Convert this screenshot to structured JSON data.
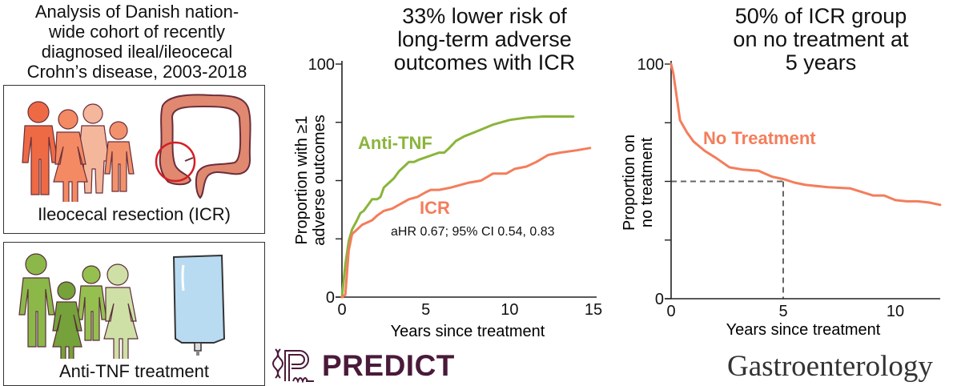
{
  "left_panel": {
    "title_lines": [
      "Analysis of Danish nation-",
      "wide cohort of recently",
      "diagnosed ileal/ileocecal",
      "Crohn’s disease, 2003-2018"
    ],
    "groups": [
      {
        "label": "Ileocecal resection (ICR)",
        "people_icon": "family-icon",
        "organ_icon": "colon-icon",
        "color": "#f07c5a"
      },
      {
        "label": "Anti-TNF treatment",
        "people_icon": "family-icon",
        "organ_icon": "iv-bag-icon",
        "color": "#8cb84a"
      }
    ]
  },
  "logos": {
    "predict": "PREDICT",
    "journal": "Gastroenterology"
  },
  "chart_data": [
    {
      "type": "line",
      "title": "33% lower risk of long-term adverse outcomes with ICR",
      "title_lines": [
        "33% lower risk of",
        "long-term adverse",
        "outcomes with ICR"
      ],
      "xlabel": "Years since treatment",
      "ylabel_lines": [
        "Proportion with ≥1",
        "adverse outcomes"
      ],
      "xlim": [
        0,
        15
      ],
      "ylim": [
        0,
        100
      ],
      "xticks": [
        0,
        5,
        10,
        15
      ],
      "yticks": [
        0,
        25,
        50,
        75,
        100
      ],
      "yticklabels": [
        "0",
        "",
        "",
        "",
        "100"
      ],
      "grid": false,
      "annotation": "aHR 0.67; 95% CI 0.54, 0.83",
      "series": [
        {
          "name": "Anti-TNF",
          "color": "#8ab53a",
          "x": [
            0,
            0.2,
            0.4,
            0.6,
            0.9,
            1.1,
            1.3,
            1.5,
            1.8,
            2.1,
            2.3,
            2.5,
            2.8,
            3.1,
            3.4,
            3.7,
            4.0,
            4.3,
            4.6,
            5.0,
            5.4,
            5.8,
            6.1,
            6.4,
            6.8,
            7.3,
            8.0,
            9.0,
            10.0,
            11.0,
            12.0,
            13.0,
            13.8
          ],
          "y": [
            0,
            14,
            24,
            29,
            33,
            36,
            37,
            39,
            42,
            42,
            43,
            47,
            49,
            51,
            54,
            56,
            58,
            58,
            59,
            60,
            61,
            62,
            62,
            64,
            67,
            69,
            71,
            74,
            76,
            77,
            77.5,
            77.5,
            77.5
          ]
        },
        {
          "name": "ICR",
          "color": "#f47d5b",
          "x": [
            0,
            0.2,
            0.4,
            0.6,
            0.9,
            1.2,
            1.5,
            1.8,
            2.1,
            2.5,
            3.0,
            3.5,
            4.0,
            4.5,
            5.0,
            5.3,
            5.8,
            6.5,
            7.5,
            8.3,
            9.0,
            9.8,
            10.3,
            11.0,
            11.6,
            12.3,
            13.0,
            14.0,
            14.8
          ],
          "y": [
            0,
            1,
            20,
            27,
            29,
            31,
            32,
            33,
            35,
            37,
            38,
            40,
            42,
            43,
            45,
            46,
            46,
            47,
            49,
            50,
            53,
            53,
            55,
            56,
            58,
            61,
            62,
            63,
            64
          ]
        }
      ]
    },
    {
      "type": "line",
      "title": "50% of ICR group on no treatment at 5 years",
      "title_lines": [
        "50% of ICR group",
        "on no treatment at",
        "5 years"
      ],
      "xlabel": "Years since treatment",
      "ylabel_lines": [
        "Proportion on",
        "no treatment"
      ],
      "xlim": [
        0,
        12
      ],
      "ylim": [
        0,
        100
      ],
      "xticks": [
        0,
        5,
        10
      ],
      "yticks": [
        0,
        25,
        50,
        75,
        100
      ],
      "yticklabels": [
        "0",
        "",
        "",
        "",
        "100"
      ],
      "grid": false,
      "reference_point": {
        "x": 5,
        "y": 50
      },
      "series": [
        {
          "name": "No Treatment",
          "color": "#f47d5b",
          "x": [
            0,
            0.1,
            0.4,
            0.7,
            1.0,
            1.5,
            2.0,
            2.6,
            3.2,
            3.9,
            4.5,
            5.0,
            5.5,
            6.0,
            7.0,
            8.0,
            8.5,
            9.0,
            9.5,
            10.0,
            10.5,
            11.0,
            11.5,
            12.0
          ],
          "y": [
            100,
            96,
            76,
            71,
            67,
            63,
            60,
            56,
            55,
            54.5,
            52,
            51,
            49.5,
            48.5,
            47.5,
            47,
            45.5,
            44,
            44,
            42,
            41.5,
            41.5,
            41,
            40
          ]
        }
      ]
    }
  ]
}
